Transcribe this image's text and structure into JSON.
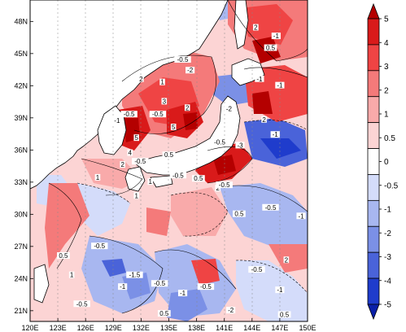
{
  "map": {
    "lat_ticks": [
      "48N",
      "45N",
      "42N",
      "39N",
      "36N",
      "33N",
      "30N",
      "27N",
      "24N",
      "21N"
    ],
    "lon_ticks": [
      "120E",
      "123E",
      "126E",
      "129E",
      "132E",
      "135E",
      "138E",
      "141E",
      "144E",
      "147E",
      "150E"
    ],
    "lat_range": [
      20,
      50
    ],
    "lon_range": [
      120,
      150
    ]
  },
  "colorbar": {
    "levels": [
      "5",
      "4",
      "3",
      "2",
      "1",
      "0.5",
      "0",
      "-0.5",
      "-1",
      "-2",
      "-3",
      "-4",
      "-5"
    ],
    "colors": [
      "#b40000",
      "#d91a1a",
      "#ef4444",
      "#f47a7a",
      "#f9aaaa",
      "#fcd4d4",
      "#ffffff",
      "#d4dcfa",
      "#a8b7f0",
      "#7b90e6",
      "#4a63d9",
      "#1f3ccc",
      "#0a1fa8"
    ]
  },
  "contour_labels": [
    {
      "text": "-0.5",
      "lon": 136.5,
      "lat": 44.3
    },
    {
      "text": "-2",
      "lon": 137.3,
      "lat": 43.3
    },
    {
      "text": "1",
      "lon": 134.3,
      "lat": 42.2
    },
    {
      "text": "2",
      "lon": 132.0,
      "lat": 42.5
    },
    {
      "text": "3",
      "lon": 134.5,
      "lat": 40.4
    },
    {
      "text": "2",
      "lon": 137.0,
      "lat": 39.8
    },
    {
      "text": "-0.5",
      "lon": 130.7,
      "lat": 39.2
    },
    {
      "text": "-1",
      "lon": 129.4,
      "lat": 38.6
    },
    {
      "text": "-0.5",
      "lon": 133.8,
      "lat": 39.2
    },
    {
      "text": "5",
      "lon": 131.5,
      "lat": 37.0
    },
    {
      "text": "5",
      "lon": 135.5,
      "lat": 38.0
    },
    {
      "text": "4",
      "lon": 130.8,
      "lat": 35.6
    },
    {
      "text": "-0.5",
      "lon": 131.9,
      "lat": 34.8
    },
    {
      "text": "0.5",
      "lon": 135.0,
      "lat": 35.4
    },
    {
      "text": "2",
      "lon": 130.0,
      "lat": 34.5
    },
    {
      "text": "1",
      "lon": 127.3,
      "lat": 33.3
    },
    {
      "text": "1",
      "lon": 133.0,
      "lat": 32.9
    },
    {
      "text": "1",
      "lon": 131.5,
      "lat": 31.6
    },
    {
      "text": "-0.5",
      "lon": 136.0,
      "lat": 33.5
    },
    {
      "text": "0.5",
      "lon": 138.2,
      "lat": 33.2
    },
    {
      "text": "2",
      "lon": 140.3,
      "lat": 32.3
    },
    {
      "text": "-0.5",
      "lon": 141.0,
      "lat": 32.6
    },
    {
      "text": "-0.5",
      "lon": 146.0,
      "lat": 30.5
    },
    {
      "text": "0.5",
      "lon": 142.6,
      "lat": 29.9
    },
    {
      "text": "-1",
      "lon": 149.3,
      "lat": 29.7
    },
    {
      "text": "-0.5",
      "lon": 127.5,
      "lat": 26.9
    },
    {
      "text": "0.5",
      "lon": 123.6,
      "lat": 26.0
    },
    {
      "text": "1",
      "lon": 124.5,
      "lat": 24.2
    },
    {
      "text": "-1",
      "lon": 130.0,
      "lat": 23.1
    },
    {
      "text": "-0.5",
      "lon": 134.0,
      "lat": 23.4
    },
    {
      "text": "-1",
      "lon": 136.5,
      "lat": 22.5
    },
    {
      "text": "-0.5",
      "lon": 139.0,
      "lat": 23.1
    },
    {
      "text": "-1.5",
      "lon": 131.3,
      "lat": 24.2
    },
    {
      "text": "-0.5",
      "lon": 125.6,
      "lat": 21.5
    },
    {
      "text": "0.5",
      "lon": 134.5,
      "lat": 20.6
    },
    {
      "text": "-2",
      "lon": 141.7,
      "lat": 20.9
    },
    {
      "text": "-1",
      "lon": 147.0,
      "lat": 22.8
    },
    {
      "text": "0.5",
      "lon": 147.5,
      "lat": 20.5
    },
    {
      "text": "2",
      "lon": 147.7,
      "lat": 25.6
    },
    {
      "text": "-0.5",
      "lon": 144.5,
      "lat": 24.7
    },
    {
      "text": "-1",
      "lon": 144.8,
      "lat": 42.5
    },
    {
      "text": "-3",
      "lon": 142.7,
      "lat": 36.3
    },
    {
      "text": "-1",
      "lon": 146.5,
      "lat": 37.3
    },
    {
      "text": "2",
      "lon": 145.3,
      "lat": 38.7
    },
    {
      "text": "-1",
      "lon": 147.0,
      "lat": 41.9
    },
    {
      "text": "-2",
      "lon": 141.5,
      "lat": 39.7
    },
    {
      "text": "-0.5",
      "lon": 140.5,
      "lat": 36.6
    },
    {
      "text": "2",
      "lon": 144.4,
      "lat": 47.3
    },
    {
      "text": "0.5",
      "lon": 146.0,
      "lat": 45.4
    },
    {
      "text": "-1",
      "lon": 146.6,
      "lat": 46.5
    }
  ]
}
